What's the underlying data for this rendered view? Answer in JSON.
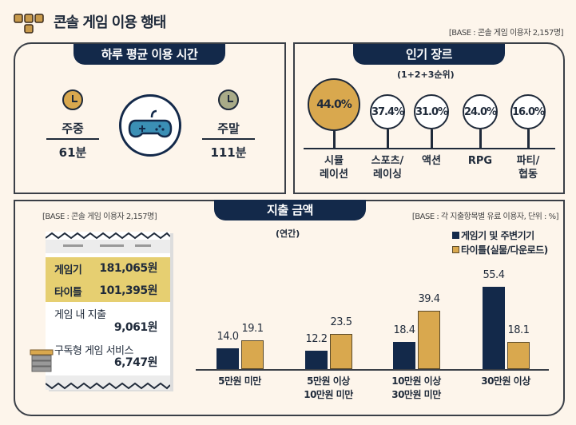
{
  "header": {
    "title": "콘솔 게임 이용 행태",
    "base": "[BASE : 콘솔 게임 이용자 2,157명]",
    "icon": "dpad-icon"
  },
  "daily_time": {
    "title": "하루 평균 이용 시간",
    "weekday": {
      "label": "주중",
      "value": "61분"
    },
    "weekend": {
      "label": "주말",
      "value": "111분"
    },
    "icon": "gamepad-icon"
  },
  "genres": {
    "title": "인기 장르",
    "subtitle": "(1+2+3순위)",
    "items": [
      {
        "value": "44.0%",
        "label1": "시뮬",
        "label2": "레이션"
      },
      {
        "value": "37.4%",
        "label1": "스포츠/",
        "label2": "레이싱"
      },
      {
        "value": "31.0%",
        "label1": "액션",
        "label2": ""
      },
      {
        "value": "24.0%",
        "label1": "RPG",
        "label2": ""
      },
      {
        "value": "16.0%",
        "label1": "파티/",
        "label2": "협동"
      }
    ],
    "highlight_color": "#d9a84e"
  },
  "spending": {
    "title": "지출 금액",
    "subtitle": "(연간)",
    "base_left": "[BASE : 콘솔 게임 이용자 2,157명]",
    "base_right": "[BASE : 각 지출항목별 유료 이용자, 단위 : %]",
    "receipt": [
      {
        "label": "게임기",
        "value": "181,065원"
      },
      {
        "label": "타이틀",
        "value": "101,395원"
      },
      {
        "label": "게임 내 지출",
        "value": "9,061원"
      },
      {
        "label": "구독형 게임 서비스",
        "value": "6,747원"
      }
    ]
  },
  "chart_data": {
    "type": "bar",
    "categories": [
      "5만원 미만",
      "5만원 이상\n10만원 미만",
      "10만원 이상\n30만원 미만",
      "30만원 이상"
    ],
    "cat_lines": [
      [
        "5만원 미만",
        ""
      ],
      [
        "5만원 이상",
        "10만원 미만"
      ],
      [
        "10만원 이상",
        "30만원 미만"
      ],
      [
        "30만원 이상",
        ""
      ]
    ],
    "series": [
      {
        "name": "게임기 및 주변기기",
        "color": "#13294a",
        "values": [
          14.0,
          12.2,
          18.4,
          55.4
        ]
      },
      {
        "name": "타이틀(실물/다운로드)",
        "color": "#d9a84e",
        "values": [
          19.1,
          23.5,
          39.4,
          18.1
        ]
      }
    ],
    "unit": "%",
    "ylim": [
      0,
      60
    ],
    "grid": false,
    "legend": "top-right"
  }
}
